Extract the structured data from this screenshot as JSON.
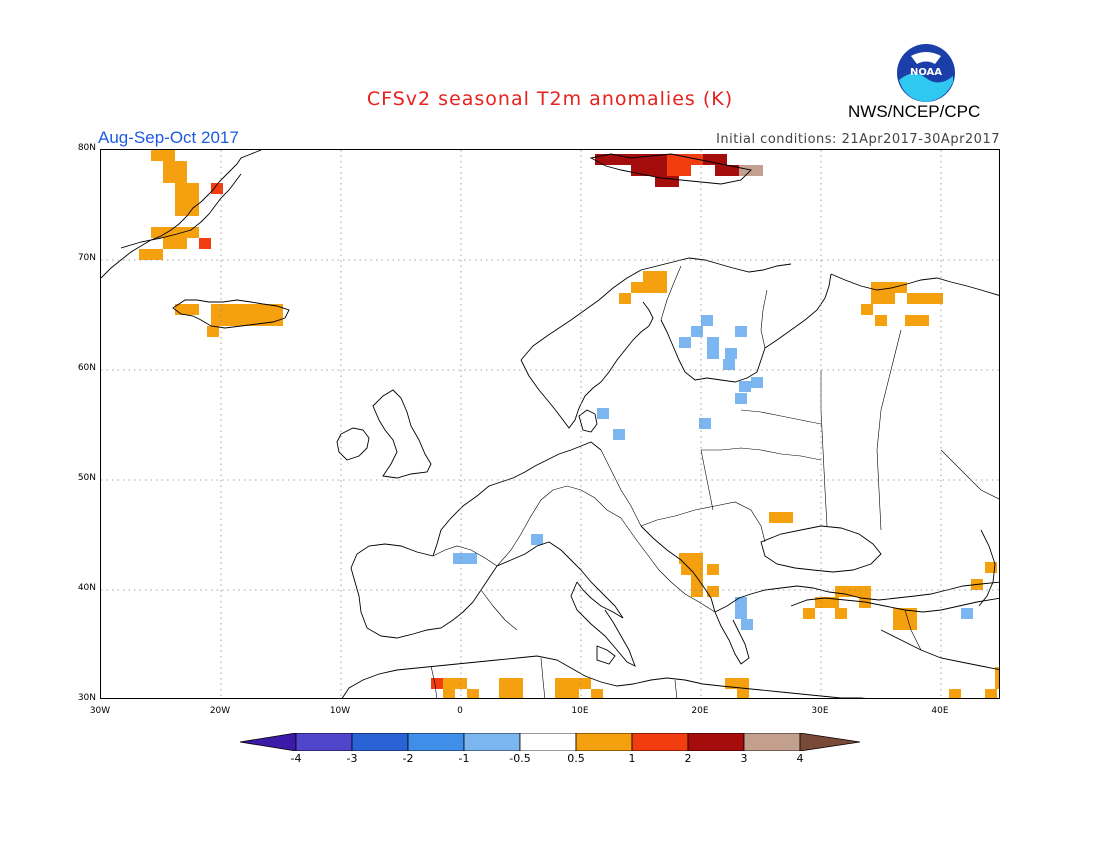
{
  "title": "CFSv2 seasonal T2m anomalies (K)",
  "agency": "NWS/NCEP/CPC",
  "logo_text": "NOAA",
  "season": "Aug-Sep-Oct 2017",
  "initial_conditions": "Initial conditions: 21Apr2017-30Apr2017",
  "map": {
    "lon_labels": [
      "30W",
      "20W",
      "10W",
      "0",
      "10E",
      "20E",
      "30E",
      "40E"
    ],
    "lat_labels": [
      "80N",
      "70N",
      "60N",
      "50N",
      "40N",
      "30N"
    ],
    "lon_range": [
      -30,
      45
    ],
    "lat_range": [
      30,
      80
    ],
    "grid": "dotted"
  },
  "colorbar": {
    "labels": [
      "-4",
      "-3",
      "-2",
      "-1",
      "-0.5",
      "0.5",
      "1",
      "2",
      "3",
      "4"
    ],
    "colors": [
      "#3b1aa8",
      "#5046cc",
      "#2a63d4",
      "#3f8fe8",
      "#7bb6f0",
      "#ffffff",
      "#f5a00e",
      "#f13d10",
      "#a50c0c",
      "#c3a08e",
      "#7a4a38"
    ]
  },
  "anomaly_colors": {
    "c1": "#f5a00e",
    "c2": "#f13d10",
    "c3": "#a50c0c",
    "c4": "#c3a08e",
    "cn": "#7bb6f0"
  }
}
